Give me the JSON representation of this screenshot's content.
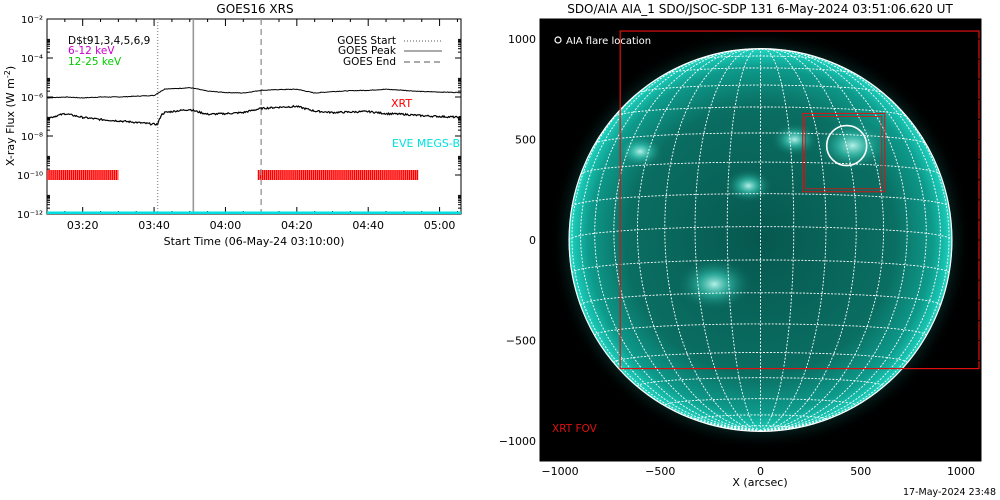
{
  "goes": {
    "title": "GOES16 XRS",
    "ylabel": "X-ray Flux (W m",
    "ylabel_sup": "-2",
    "ylabel_end": ")",
    "xlabel": "Start Time (06-May-24 03:10:00)",
    "legend_left": [
      {
        "text": "D$t91,3,4,5,6,9",
        "color": "#000000"
      },
      {
        "text": "6-12 keV",
        "color": "#cc00cc"
      },
      {
        "text": "12-25 keV",
        "color": "#00cc00"
      }
    ],
    "legend_right": [
      {
        "text": "GOES Start",
        "style": "dotted"
      },
      {
        "text": "GOES Peak",
        "style": "solid"
      },
      {
        "text": "GOES End",
        "style": "dashed"
      }
    ],
    "xrt_label": "XRT",
    "eve_label": "EVE MEGS-B",
    "colors": {
      "xrt": "#ff0000",
      "eve": "#00e0e0",
      "curve": "#000000"
    }
  },
  "aia": {
    "title": "SDO/AIA AIA_1 SDO/JSOC-SDP 131  6-May-2024 03:51:06.620 UT",
    "xlabel": "X (arcsec)",
    "flare_legend": "AIA flare location",
    "xrt_fov_label": "XRT FOV",
    "colors": {
      "disk": "#0fb5a5",
      "fov": "#dd1111",
      "grid": "#ffffff"
    }
  },
  "footer": {
    "timestamp": "17-May-2024 23:48"
  },
  "chart_data": [
    {
      "type": "line",
      "title": "GOES16 XRS",
      "xlabel": "Start Time (06-May-24 03:10:00)",
      "ylabel": "X-ray Flux (W m^-2)",
      "yscale": "log",
      "x_unit": "minutes after 03:10:00",
      "xlim": [
        0,
        116
      ],
      "ylim": [
        1e-12,
        0.01
      ],
      "x_ticks": [
        10,
        30,
        50,
        70,
        90,
        110
      ],
      "x_tick_labels": [
        "03:20",
        "03:40",
        "04:00",
        "04:20",
        "04:40",
        "05:00"
      ],
      "y_ticks": [
        1e-12,
        1e-10,
        1e-08,
        1e-06,
        0.0001,
        0.01
      ],
      "y_tick_labels": [
        "10⁻¹²",
        "10⁻¹⁰",
        "10⁻⁸",
        "10⁻⁶",
        "10⁻⁴",
        "10⁻²"
      ],
      "vlines": [
        {
          "name": "GOES Start",
          "x": 31,
          "style": "dotted"
        },
        {
          "name": "GOES Peak",
          "x": 41,
          "style": "solid"
        },
        {
          "name": "GOES End",
          "x": 60,
          "style": "dashed"
        }
      ],
      "series": [
        {
          "name": "6-12 keV",
          "x": [
            0,
            5,
            10,
            15,
            20,
            25,
            30,
            32,
            33,
            36,
            40,
            42,
            45,
            50,
            55,
            60,
            65,
            70,
            75,
            80,
            85,
            90,
            95,
            100,
            105,
            110,
            116
          ],
          "values": [
            9e-07,
            1e-06,
            9e-07,
            1e-06,
            1e-06,
            1.1e-06,
            1.2e-06,
            2e-06,
            2.6e-06,
            2.7e-06,
            3e-06,
            2.6e-06,
            2e-06,
            1.7e-06,
            1.6e-06,
            2.2e-06,
            2.4e-06,
            2.5e-06,
            1.6e-06,
            1.9e-06,
            2.1e-06,
            2.2e-06,
            2.5e-06,
            2.2e-06,
            1.9e-06,
            1.8e-06,
            1.7e-06
          ]
        },
        {
          "name": "12-25 keV",
          "x": [
            0,
            5,
            10,
            15,
            20,
            25,
            30,
            31,
            32,
            33,
            36,
            40,
            42,
            45,
            50,
            55,
            60,
            65,
            70,
            75,
            80,
            85,
            90,
            95,
            100,
            105,
            110,
            116
          ],
          "values": [
            8e-08,
            1.4e-07,
            9e-08,
            7e-08,
            6e-08,
            5e-08,
            4e-08,
            4e-08,
            1.2e-07,
            1.6e-07,
            1.9e-07,
            2.3e-07,
            1.8e-07,
            1.3e-07,
            1.4e-07,
            1.6e-07,
            2.6e-07,
            3e-07,
            3.3e-07,
            1.9e-07,
            1.6e-07,
            1.7e-07,
            1.8e-07,
            1.4e-07,
            1.3e-07,
            1.1e-07,
            1e-07,
            9e-08
          ]
        }
      ],
      "xrt_intervals": [
        [
          0,
          20
        ],
        [
          59,
          104
        ]
      ],
      "xrt_level": 1e-10,
      "eve_level": 1e-12
    },
    {
      "type": "scatter",
      "title": "SDO/AIA AIA_1 SDO/JSOC-SDP 131  6-May-2024 03:51:06.620 UT",
      "xlabel": "X (arcsec)",
      "ylabel": "",
      "xlim": [
        -1100,
        1100
      ],
      "ylim": [
        -1100,
        1100
      ],
      "x_ticks": [
        -1000,
        -500,
        0,
        500,
        1000
      ],
      "y_ticks": [
        -1000,
        -500,
        0,
        500,
        1000
      ],
      "solar_radius_arcsec": 955,
      "flare_location": {
        "x": 430,
        "y": 470
      },
      "xrt_fov": {
        "x0": -700,
        "x1": 1090,
        "y0": -640,
        "y1": 1040
      },
      "xrt_subfield": {
        "x0": 210,
        "x1": 620,
        "y0": 240,
        "y1": 630
      },
      "bright_regions": [
        {
          "x": -230,
          "y": -220
        },
        {
          "x": 460,
          "y": 470
        },
        {
          "x": 170,
          "y": 500
        },
        {
          "x": -600,
          "y": 440
        },
        {
          "x": -60,
          "y": 270
        }
      ]
    }
  ]
}
